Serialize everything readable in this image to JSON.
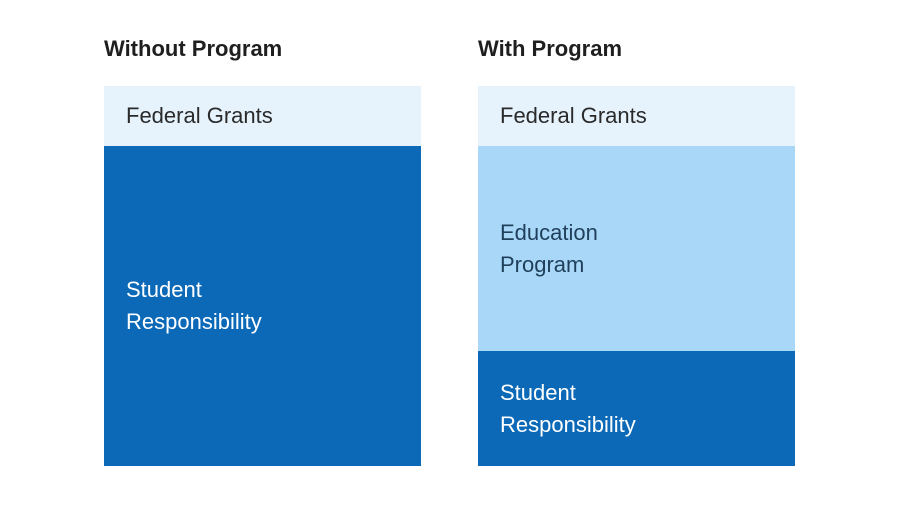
{
  "columns": {
    "without": {
      "title": "Without Program",
      "blocks": {
        "federal": "Federal Grants",
        "student": "Student\nResponsibility"
      }
    },
    "with": {
      "title": "With Program",
      "blocks": {
        "federal": "Federal Grants",
        "education": "Education\nProgram",
        "student": "Student\nResponsibility"
      }
    }
  },
  "colors": {
    "federal_grants": "#e6f3fd",
    "education_program": "#a9d7f8",
    "student_responsibility": "#0b69b7"
  }
}
